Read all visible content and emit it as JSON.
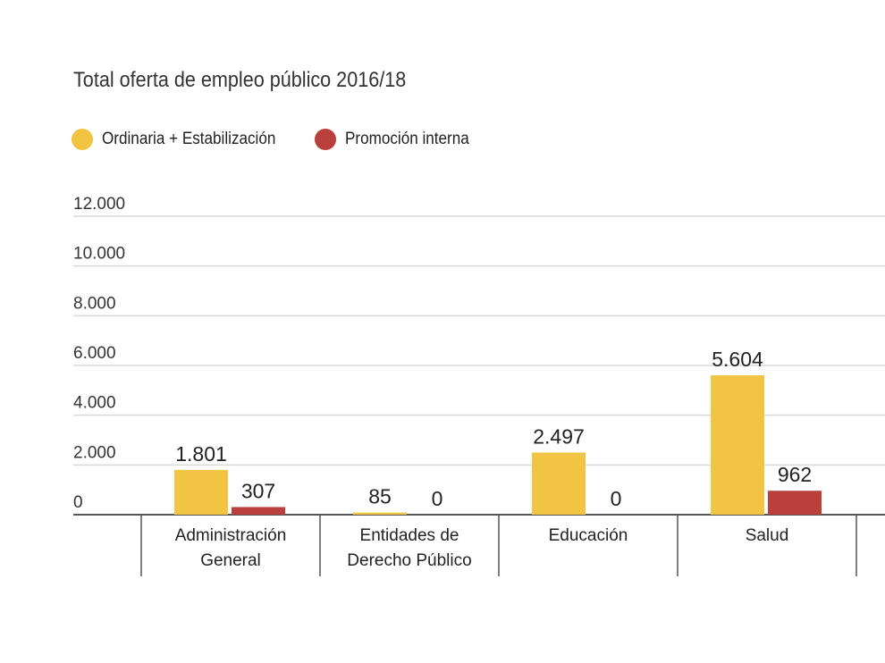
{
  "title": "Total oferta de empleo público 2016/18",
  "colors": {
    "ordinaria": "#f2c443",
    "promocion": "#b9403c",
    "grid": "#d9d9d9",
    "axis": "#555555"
  },
  "chart_data": {
    "type": "bar",
    "title": "Total oferta de empleo público 2016/18",
    "categories": [
      [
        "Administración",
        "General"
      ],
      [
        "Entidades de",
        "Derecho Público"
      ],
      [
        "Educación"
      ],
      [
        "Salud"
      ]
    ],
    "series": [
      {
        "name": "Ordinaria + Estabilización",
        "values": [
          1801,
          85,
          2497,
          5604
        ],
        "labels": [
          "1.801",
          "85",
          "2.497",
          "5.604"
        ]
      },
      {
        "name": "Promoción interna",
        "values": [
          307,
          0,
          0,
          962
        ],
        "labels": [
          "307",
          "0",
          "0",
          "962"
        ]
      }
    ],
    "yticks": [
      {
        "value": 0,
        "label": "0"
      },
      {
        "value": 2000,
        "label": "2.000"
      },
      {
        "value": 4000,
        "label": "4.000"
      },
      {
        "value": 6000,
        "label": "6.000"
      },
      {
        "value": 8000,
        "label": "8.000"
      },
      {
        "value": 10000,
        "label": "10.000"
      },
      {
        "value": 12000,
        "label": "12.000"
      }
    ],
    "ylim": [
      0,
      12000
    ],
    "grid": true,
    "legend_position": "top-left"
  }
}
